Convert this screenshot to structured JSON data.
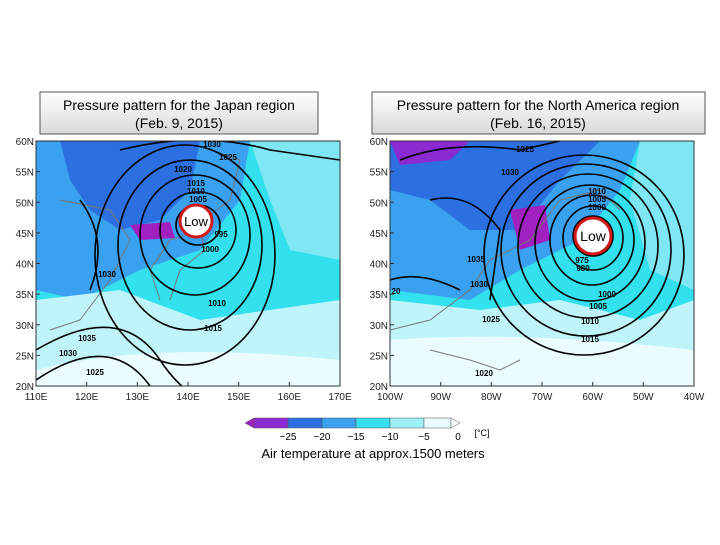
{
  "panels": [
    {
      "title": "Pressure pattern for the Japan region",
      "date": "(Feb. 9, 2015)",
      "low_label": "Low",
      "lat_labels": [
        "60N",
        "55N",
        "50N",
        "45N",
        "40N",
        "35N",
        "30N",
        "25N",
        "20N"
      ],
      "lon_labels": [
        "110E",
        "120E",
        "130E",
        "140E",
        "150E",
        "160E",
        "170E"
      ],
      "contour_labels": [
        "1030",
        "1025",
        "1020",
        "1015",
        "1010",
        "1005",
        "995",
        "1000",
        "1030",
        "1010",
        "1015",
        "1035",
        "1030",
        "1025"
      ]
    },
    {
      "title": "Pressure pattern for the North America region",
      "date": "(Feb. 16, 2015)",
      "low_label": "Low",
      "lat_labels": [
        "60N",
        "55N",
        "50N",
        "45N",
        "40N",
        "35N",
        "30N",
        "25N",
        "20N"
      ],
      "lon_labels": [
        "100W",
        "90W",
        "80W",
        "70W",
        "60W",
        "50W",
        "40W"
      ],
      "contour_labels": [
        "1025",
        "1030",
        "1010",
        "1005",
        "1000",
        "1035",
        "1030",
        "975",
        "980",
        "1025",
        "1000",
        "1005",
        "1010",
        "1015",
        "1020",
        "20"
      ]
    }
  ],
  "colorbar": {
    "ticks": [
      "−25",
      "−20",
      "−15",
      "−10",
      "−5",
      "0"
    ],
    "unit": "[°C]"
  },
  "caption": "Air temperature at approx.1500 meters"
}
